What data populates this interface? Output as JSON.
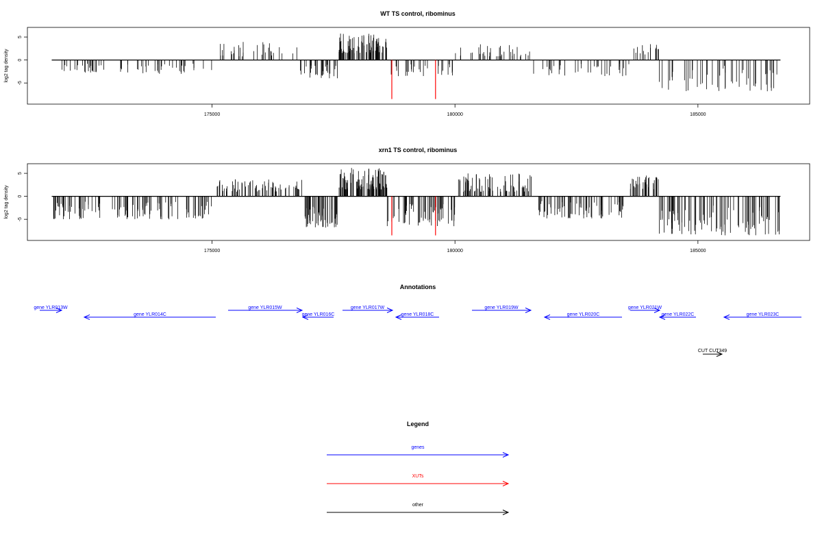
{
  "chart_data": [
    {
      "type": "bar",
      "title": "WT TS control, ribominus",
      "xlabel": "",
      "ylabel": "log2 tag density",
      "xlim": [
        171200,
        187300
      ],
      "ylim": [
        -9,
        6.5
      ],
      "xticks": [
        175000,
        180000,
        185000
      ],
      "yticks": [
        -5,
        0,
        5
      ],
      "highlight_color": "#ff0000",
      "highlights": [
        {
          "x": 178700,
          "y": -8.5
        },
        {
          "x": 179600,
          "y": -8.5
        }
      ],
      "regions": [
        {
          "start": 171800,
          "end": 172800,
          "min": -2.8,
          "max": -0.8,
          "count": 25
        },
        {
          "start": 173100,
          "end": 175000,
          "min": -3.0,
          "max": -0.8,
          "count": 35
        },
        {
          "start": 175000,
          "end": 176800,
          "min": 0.8,
          "max": 4.0,
          "count": 32
        },
        {
          "start": 176800,
          "end": 177600,
          "min": -4.0,
          "max": -1.0,
          "count": 28
        },
        {
          "start": 177600,
          "end": 178600,
          "min": 1.5,
          "max": 5.8,
          "count": 80
        },
        {
          "start": 178600,
          "end": 180000,
          "min": -3.5,
          "max": -0.8,
          "count": 30
        },
        {
          "start": 180000,
          "end": 181600,
          "min": 0.8,
          "max": 3.5,
          "count": 35
        },
        {
          "start": 181600,
          "end": 183600,
          "min": -3.5,
          "max": -0.8,
          "count": 35
        },
        {
          "start": 183600,
          "end": 184200,
          "min": 1.0,
          "max": 3.6,
          "count": 15
        },
        {
          "start": 184200,
          "end": 186700,
          "min": -6.8,
          "max": -1.0,
          "count": 50
        }
      ]
    },
    {
      "type": "bar",
      "title": "xrn1 TS control, ribominus",
      "xlabel": "",
      "ylabel": "log2 tag density",
      "xlim": [
        171200,
        187300
      ],
      "ylim": [
        -9,
        6.5
      ],
      "xticks": [
        175000,
        180000,
        185000
      ],
      "yticks": [
        -5,
        0,
        5
      ],
      "highlight_color": "#ff0000",
      "highlights": [
        {
          "x": 178700,
          "y": -8.5
        },
        {
          "x": 179600,
          "y": -8.5
        }
      ],
      "regions": [
        {
          "start": 171700,
          "end": 175000,
          "min": -5.0,
          "max": -1.0,
          "count": 110
        },
        {
          "start": 175100,
          "end": 176900,
          "min": 1.0,
          "max": 3.8,
          "count": 70
        },
        {
          "start": 176900,
          "end": 177600,
          "min": -6.8,
          "max": -2.0,
          "count": 50
        },
        {
          "start": 177600,
          "end": 178600,
          "min": 1.5,
          "max": 6.2,
          "count": 100
        },
        {
          "start": 178600,
          "end": 180000,
          "min": -6.5,
          "max": -1.0,
          "count": 60
        },
        {
          "start": 180000,
          "end": 181600,
          "min": 1.0,
          "max": 5.0,
          "count": 75
        },
        {
          "start": 181700,
          "end": 183500,
          "min": -4.8,
          "max": -1.0,
          "count": 70
        },
        {
          "start": 183600,
          "end": 184200,
          "min": 1.5,
          "max": 4.8,
          "count": 35
        },
        {
          "start": 184200,
          "end": 186700,
          "min": -8.5,
          "max": -2.0,
          "count": 90
        }
      ]
    }
  ],
  "annotations": {
    "title": "Annotations",
    "genes": [
      {
        "label": "gene YLR013W",
        "x1": 58,
        "x2": 90,
        "row": 0
      },
      {
        "label": "gene YLR014C",
        "x1": 315,
        "x2": 123,
        "row": 1
      },
      {
        "label": "gene YLR015W",
        "x1": 333,
        "x2": 441,
        "row": 0
      },
      {
        "label": "gene YLR016C",
        "x1": 487,
        "x2": 442,
        "row": 1
      },
      {
        "label": "gene YLR017W",
        "x1": 500,
        "x2": 573,
        "row": 0
      },
      {
        "label": "gene YLR018C",
        "x1": 641,
        "x2": 578,
        "row": 1
      },
      {
        "label": "gene YLR019W",
        "x1": 689,
        "x2": 775,
        "row": 0
      },
      {
        "label": "gene YLR020C",
        "x1": 908,
        "x2": 795,
        "row": 1
      },
      {
        "label": "gene YLR021W",
        "x1": 920,
        "x2": 963,
        "row": 0
      },
      {
        "label": "gene YLR022C",
        "x1": 1016,
        "x2": 963,
        "row": 1
      },
      {
        "label": "gene YLR023C",
        "x1": 1170,
        "x2": 1057,
        "row": 1
      }
    ],
    "other": [
      {
        "label": "CUT CUT349",
        "x1": 1026,
        "x2": 1054
      }
    ]
  },
  "legend": {
    "title": "Legend",
    "items": [
      {
        "label": "genes",
        "color": "#0000ff"
      },
      {
        "label": "XUTs",
        "color": "#ff0000"
      },
      {
        "label": "other",
        "color": "#000000"
      }
    ]
  },
  "colors": {
    "genes": "#0000ff",
    "xuts": "#ff0000",
    "other": "#000000",
    "bars": "#000000"
  }
}
